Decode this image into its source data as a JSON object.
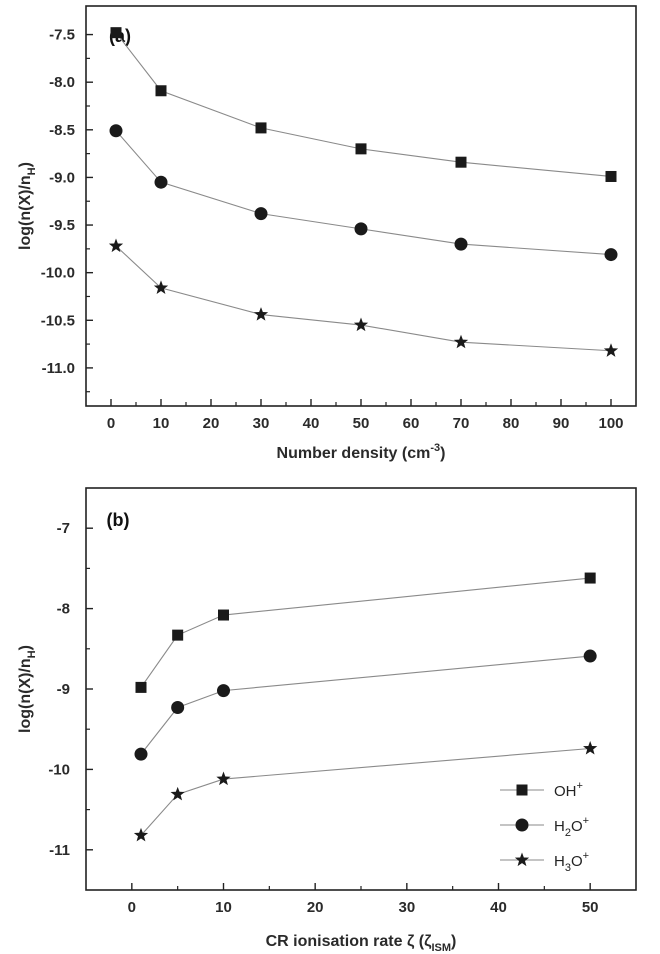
{
  "chart_data": [
    {
      "type": "line",
      "panel_label": "(a)",
      "xlabel": "Number density (cm",
      "xlabel_sup": "-3",
      "xlabel_tail": ")",
      "ylabel": "log(n(X)/n",
      "ylabel_sub": "H",
      "ylabel_tail": ")",
      "xlim": [
        -5,
        105
      ],
      "ylim": [
        -11.4,
        -7.2
      ],
      "xticks": [
        0,
        10,
        20,
        30,
        40,
        50,
        60,
        70,
        80,
        90,
        100
      ],
      "xtick_labels": [
        "0",
        "10",
        "20",
        "30",
        "40",
        "50",
        "60",
        "70",
        "80",
        "90",
        "100"
      ],
      "yticks": [
        -7.5,
        -8.0,
        -8.5,
        -9.0,
        -9.5,
        -10.0,
        -10.5,
        -11.0
      ],
      "ytick_labels": [
        "-7.5",
        "-8.0",
        "-8.5",
        "-9.0",
        "-9.5",
        "-10.0",
        "-10.5",
        "-11.0"
      ],
      "series": [
        {
          "marker": "square",
          "x": [
            1,
            10,
            30,
            50,
            70,
            100
          ],
          "y": [
            -7.48,
            -8.09,
            -8.48,
            -8.7,
            -8.84,
            -8.99
          ]
        },
        {
          "marker": "circle",
          "x": [
            1,
            10,
            30,
            50,
            70,
            100
          ],
          "y": [
            -8.51,
            -9.05,
            -9.38,
            -9.54,
            -9.7,
            -9.81
          ]
        },
        {
          "marker": "star",
          "x": [
            1,
            10,
            30,
            50,
            70,
            100
          ],
          "y": [
            -9.72,
            -10.16,
            -10.44,
            -10.55,
            -10.73,
            -10.82
          ]
        }
      ]
    },
    {
      "type": "line",
      "panel_label": "(b)",
      "xlabel": "CR ionisation rate ζ  (ζ",
      "xlabel_sub": "ISM",
      "xlabel_tail": ")",
      "ylabel": "log(n(X)/n",
      "ylabel_sub": "H",
      "ylabel_tail": ")",
      "xlim": [
        -5,
        55
      ],
      "ylim": [
        -11.5,
        -6.5
      ],
      "xticks": [
        0,
        10,
        20,
        30,
        40,
        50
      ],
      "xtick_labels": [
        "0",
        "10",
        "20",
        "30",
        "40",
        "50"
      ],
      "yticks": [
        -7,
        -8,
        -9,
        -10,
        -11
      ],
      "ytick_labels": [
        "-7",
        "-8",
        "-9",
        "-10",
        "-11"
      ],
      "legend_position": "bottom-right",
      "series": [
        {
          "name": "OH",
          "name_sub": "",
          "name_tail": "O",
          "name_sup": "+",
          "marker": "square",
          "x": [
            1,
            5,
            10,
            50
          ],
          "y": [
            -8.98,
            -8.33,
            -8.08,
            -7.62
          ]
        },
        {
          "name": "H",
          "name_sub": "2",
          "name_tail": "O",
          "name_sup": "+",
          "marker": "circle",
          "x": [
            1,
            5,
            10,
            50
          ],
          "y": [
            -9.81,
            -9.23,
            -9.02,
            -8.59
          ]
        },
        {
          "name": "H",
          "name_sub": "3",
          "name_tail": "O",
          "name_sup": "+",
          "marker": "star",
          "x": [
            1,
            5,
            10,
            50
          ],
          "y": [
            -10.82,
            -10.31,
            -10.12,
            -9.74
          ]
        }
      ]
    }
  ],
  "style": {
    "line_color": "#8a8a8a",
    "marker_color": "#1a1a1a",
    "axis_color": "#222222"
  }
}
